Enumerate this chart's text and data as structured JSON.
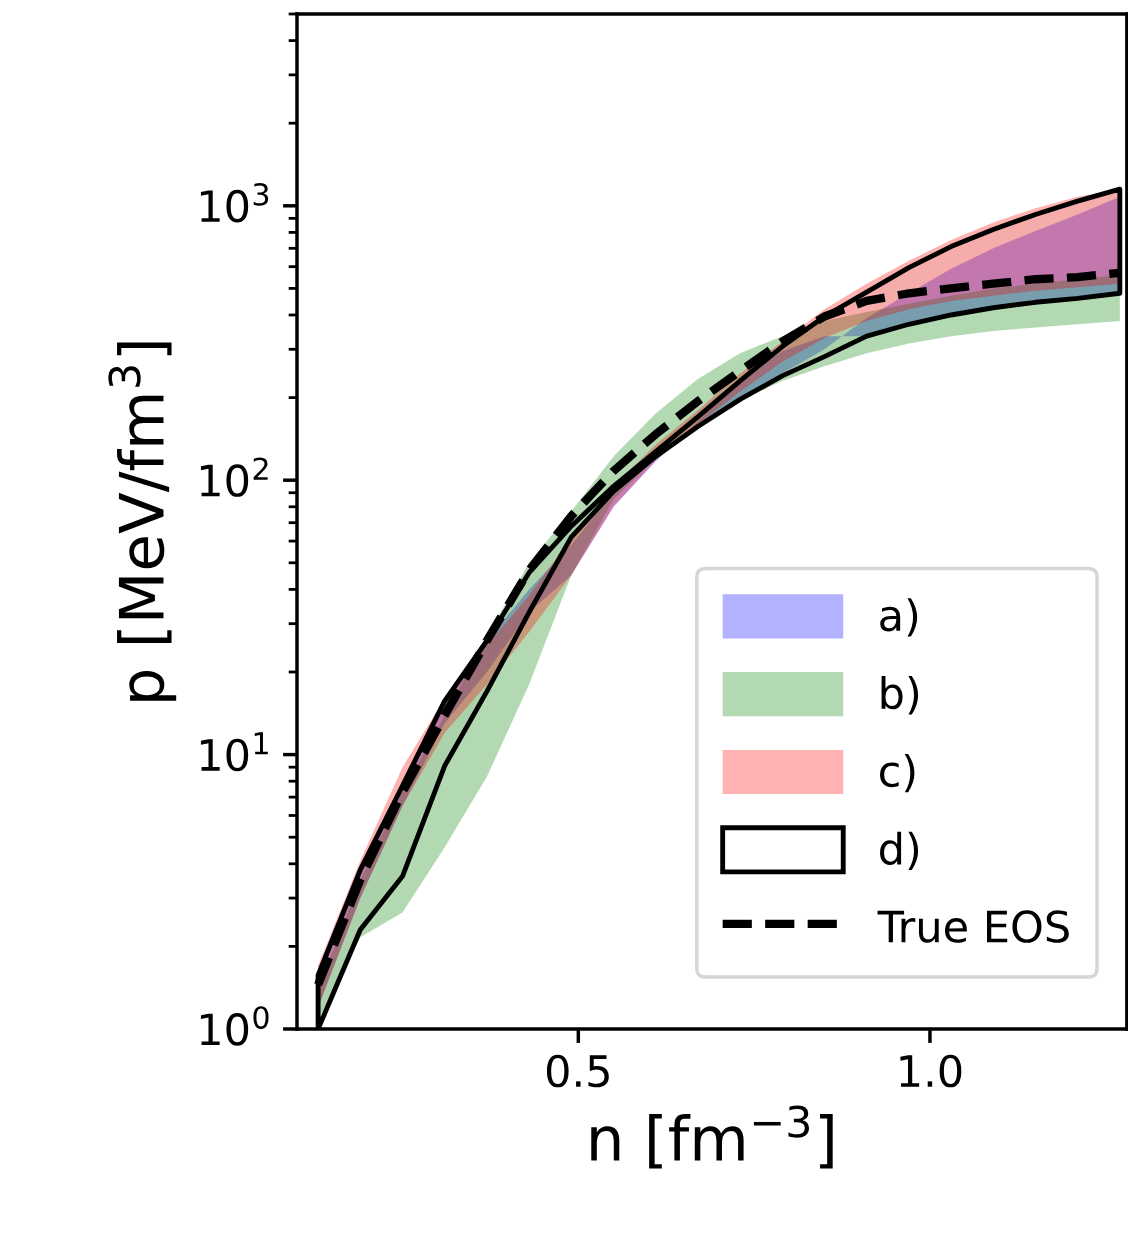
{
  "chart_data": {
    "type": "line",
    "xlabel": "n [fm$^{−3}$]",
    "ylabel": "p [MeV/fm$^{3}$]",
    "x": [
      0.13,
      0.19,
      0.25,
      0.31,
      0.37,
      0.43,
      0.49,
      0.55,
      0.61,
      0.67,
      0.73,
      0.79,
      0.85,
      0.91,
      0.97,
      1.03,
      1.09,
      1.15,
      1.21,
      1.27
    ],
    "xlim": [
      0.1,
      1.28
    ],
    "xticks": [
      {
        "value": 0.5,
        "label": "0.5"
      },
      {
        "value": 1.0,
        "label": "1.0"
      }
    ],
    "log": "y",
    "ylim": [
      1,
      5000
    ],
    "yticks": [
      {
        "value": 1,
        "label": "10$^{0}$"
      },
      {
        "value": 10,
        "label": "10$^{1}$"
      },
      {
        "value": 100,
        "label": "10$^{2}$"
      },
      {
        "value": 1000,
        "label": "10$^{3}$"
      }
    ],
    "grid": false,
    "legend": "bottom right",
    "series": [
      {
        "name": "a)",
        "type": "area",
        "color": "#0000ff",
        "values": [
          null,
          null,
          null,
          null,
          null,
          null,
          null,
          null,
          null,
          null,
          null,
          null,
          null,
          null,
          null,
          null,
          null,
          null,
          null,
          null
        ],
        "lower": [
          1.2,
          3.0,
          6.5,
          13,
          20,
          33,
          45,
          80,
          117,
          164,
          230,
          295,
          335,
          335,
          370,
          400,
          425,
          445,
          460,
          480
        ],
        "upper": [
          1.5,
          3.7,
          8,
          16,
          26,
          40,
          58,
          90,
          122,
          157,
          197,
          245,
          300,
          390,
          480,
          590,
          700,
          810,
          930,
          1080
        ]
      },
      {
        "name": "b)",
        "type": "area",
        "color": "#008000",
        "values": [
          null,
          null,
          null,
          null,
          null,
          null,
          null,
          null,
          null,
          null,
          null,
          null,
          null,
          null,
          null,
          null,
          null,
          null,
          null,
          null
        ],
        "lower": [
          1.08,
          2.16,
          2.66,
          4.6,
          8.3,
          18,
          45,
          85,
          120,
          160,
          195,
          230,
          260,
          290,
          315,
          335,
          350,
          360,
          370,
          380
        ],
        "upper": [
          1.4,
          3.5,
          7.3,
          13.9,
          27,
          50,
          77,
          122,
          175,
          234,
          290,
          335,
          380,
          410,
          440,
          470,
          500,
          520,
          540,
          560
        ]
      },
      {
        "name": "c)",
        "type": "area",
        "color": "#ff0000",
        "values": [
          null,
          null,
          null,
          null,
          null,
          null,
          null,
          null,
          null,
          null,
          null,
          null,
          null,
          null,
          null,
          null,
          null,
          null,
          null,
          null
        ],
        "lower": [
          1.2,
          3.0,
          6.5,
          12,
          18,
          28,
          45,
          80,
          118,
          160,
          210,
          270,
          330,
          380,
          420,
          450,
          470,
          490,
          505,
          520
        ],
        "upper": [
          1.7,
          4.1,
          9,
          16,
          25,
          38,
          62,
          95,
          135,
          180,
          245,
          320,
          420,
          520,
          630,
          750,
          870,
          980,
          1080,
          1150
        ]
      },
      {
        "name": "d)",
        "type": "line",
        "color": "#000000",
        "line_style": "solid",
        "values": [
          null,
          null,
          null,
          null,
          null,
          null,
          null,
          null,
          null,
          null,
          null,
          null,
          null,
          null,
          null,
          null,
          null,
          null,
          null,
          null
        ],
        "lower": [
          1.0,
          2.3,
          3.6,
          9.1,
          17,
          33,
          62,
          91,
          122,
          157,
          197,
          240,
          282,
          335,
          370,
          400,
          425,
          445,
          460,
          480
        ],
        "upper": [
          1.57,
          3.8,
          7.7,
          15.7,
          26,
          46,
          68,
          95,
          127,
          170,
          230,
          307,
          395,
          485,
          595,
          710,
          820,
          930,
          1040,
          1150
        ]
      },
      {
        "name": "True EOS",
        "color": "#000000",
        "line_style": "dashed",
        "values": [
          1.45,
          3.5,
          7.3,
          13.9,
          26,
          47,
          74,
          108,
          147,
          194,
          250,
          320,
          395,
          450,
          480,
          500,
          520,
          540,
          550,
          570
        ]
      }
    ]
  }
}
